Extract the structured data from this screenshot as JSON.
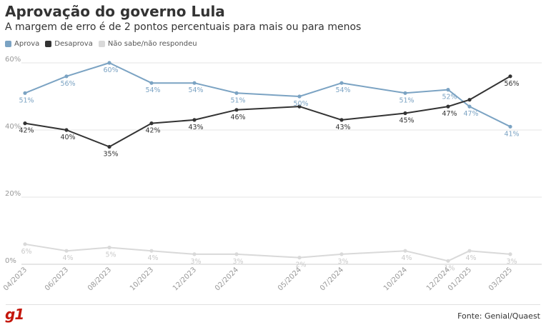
{
  "title": "Aprovação do governo Lula",
  "subtitle": "A margem de erro é de 2 pontos percentuais para mais ou para menos",
  "source": "Fonte: Genial/Quaest",
  "logo": "g1",
  "colors": {
    "aprova": "#7ba3c3",
    "desaprova": "#333333",
    "nao_sabe": "#d9d9d9",
    "grid": "#e6e6e6",
    "axis_text": "#999999"
  },
  "chart_data": {
    "type": "line",
    "x": [
      "04/2023",
      "06/2023",
      "08/2023",
      "10/2023",
      "12/2023",
      "02/2024",
      "05/2024",
      "07/2024",
      "10/2024",
      "12/2024",
      "01/2025",
      "03/2025"
    ],
    "y_ticks": [
      "0%",
      "20%",
      "40%",
      "60%"
    ],
    "ylim": [
      0,
      60
    ],
    "grid": true,
    "legend_position": "top-left",
    "series": [
      {
        "name": "Aprova",
        "color": "#7ba3c3",
        "values": [
          51,
          56,
          60,
          54,
          54,
          51,
          50,
          54,
          51,
          52,
          47,
          41
        ],
        "labels": [
          "51%",
          "56%",
          "60%",
          "54%",
          "54%",
          "51%",
          "50%",
          "54%",
          "51%",
          "52%",
          "47%",
          "41%"
        ]
      },
      {
        "name": "Desaprova",
        "color": "#333333",
        "values": [
          42,
          40,
          35,
          42,
          43,
          46,
          47,
          43,
          45,
          47,
          49,
          56
        ],
        "labels": [
          "42%",
          "40%",
          "35%",
          "42%",
          "43%",
          "46%",
          "",
          "43%",
          "45%",
          "47%",
          "",
          "56%"
        ]
      },
      {
        "name": "Não sabe/não respondeu",
        "color": "#d9d9d9",
        "values": [
          6,
          4,
          5,
          4,
          3,
          3,
          2,
          3,
          4,
          1,
          4,
          3
        ],
        "labels": [
          "6%",
          "4%",
          "5%",
          "4%",
          "3%",
          "3%",
          "2%",
          "3%",
          "4%",
          "1%",
          "4%",
          "3%"
        ]
      }
    ]
  }
}
